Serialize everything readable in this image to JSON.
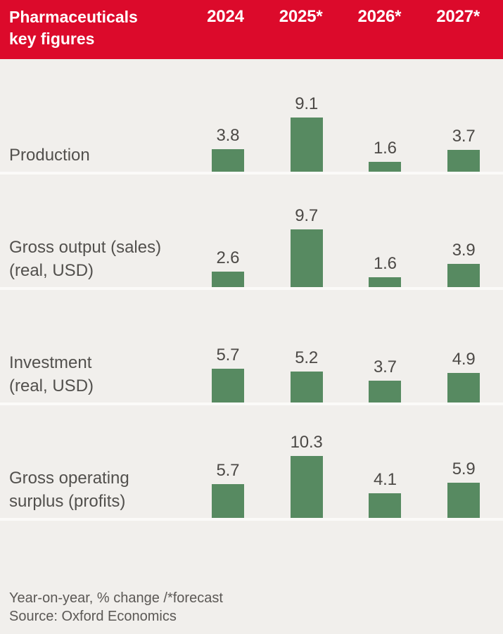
{
  "header": {
    "title_line1": "Pharmaceuticals",
    "title_line2": "key figures",
    "columns": [
      "2024",
      "2025*",
      "2026*",
      "2027*"
    ]
  },
  "chart_data": {
    "type": "bar",
    "title": "Pharmaceuticals key figures",
    "categories": [
      "2024",
      "2025*",
      "2026*",
      "2027*"
    ],
    "series": [
      {
        "name": "Production",
        "label_lines": [
          "Production"
        ],
        "values": [
          3.8,
          9.1,
          1.6,
          3.7
        ]
      },
      {
        "name": "Gross output (sales) (real, USD)",
        "label_lines": [
          "Gross output (sales)",
          "(real, USD)"
        ],
        "values": [
          2.6,
          9.7,
          1.6,
          3.9
        ]
      },
      {
        "name": "Investment (real, USD)",
        "label_lines": [
          "Investment",
          "(real, USD)"
        ],
        "values": [
          5.7,
          5.2,
          3.7,
          4.9
        ]
      },
      {
        "name": "Gross operating surplus (profits)",
        "label_lines": [
          "Gross operating",
          "surplus (profits)"
        ],
        "values": [
          5.7,
          10.3,
          4.1,
          5.9
        ]
      }
    ],
    "value_labels_shown": true,
    "ylim": [
      0,
      10.3
    ],
    "unit": "Year-on-year, % change",
    "legend_position": "none",
    "grid": false
  },
  "footer": {
    "note": "Year-on-year, % change /*forecast",
    "source": "Source: Oxford Economics"
  },
  "colors": {
    "accent_red": "#dc0a2b",
    "bar_green": "#578a61",
    "background": "#f1efec",
    "separator": "#fbfaf8",
    "text_dark": "#4c4946",
    "header_text": "#ffffff"
  }
}
